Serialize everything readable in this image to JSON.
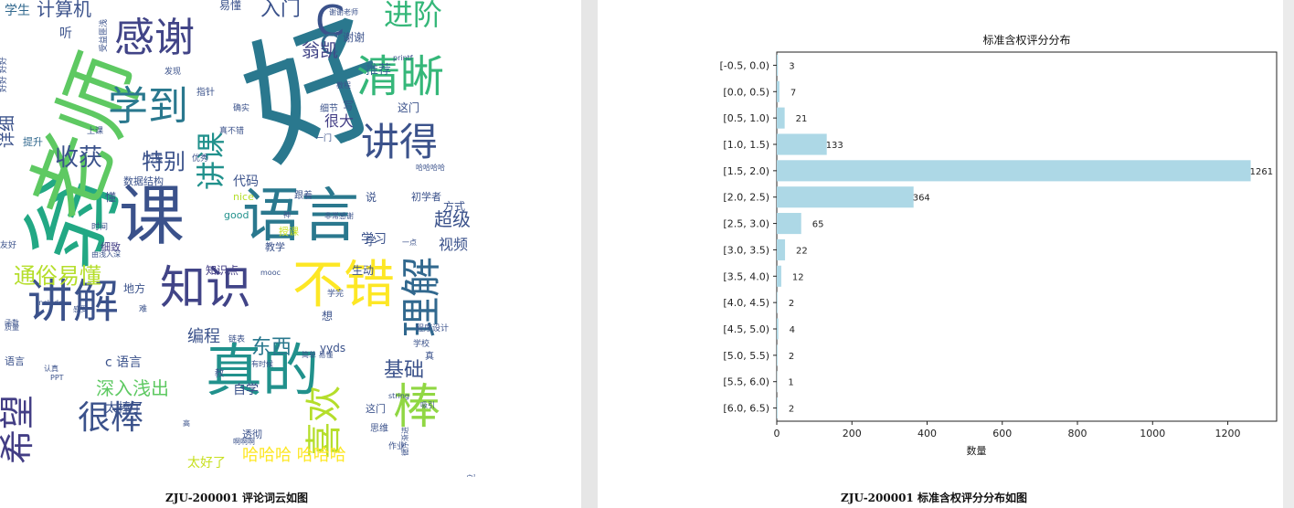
{
  "left_panel": {
    "caption": "ZJU-200001 评论词云如图",
    "words": [
      {
        "text": "好",
        "color": "#2a788e",
        "size": 150,
        "rotate": -20
      },
      {
        "text": "翁",
        "color": "#22a884",
        "size": 100,
        "rotate": -70
      },
      {
        "text": "老师",
        "color": "#5ec962",
        "size": 92,
        "rotate": -70
      },
      {
        "text": "课",
        "color": "#3b528b",
        "size": 72,
        "rotate": 0
      },
      {
        "text": "语言",
        "color": "#2a788e",
        "size": 64,
        "rotate": 0
      },
      {
        "text": "真的",
        "color": "#21918c",
        "size": 62,
        "rotate": 0
      },
      {
        "text": "不错",
        "color": "#fde725",
        "size": 56,
        "rotate": 0
      },
      {
        "text": "讲解",
        "color": "#3b528b",
        "size": 50,
        "rotate": 0
      },
      {
        "text": "知识",
        "color": "#414487",
        "size": 50,
        "rotate": 0
      },
      {
        "text": "清晰",
        "color": "#35b779",
        "size": 48,
        "rotate": 0
      },
      {
        "text": "感谢",
        "color": "#414487",
        "size": 44,
        "rotate": 0
      },
      {
        "text": "学到",
        "color": "#2a788e",
        "size": 44,
        "rotate": 0
      },
      {
        "text": "讲得",
        "color": "#3b528b",
        "size": 42,
        "rotate": 0
      },
      {
        "text": "理解",
        "color": "#31688e",
        "size": 44,
        "rotate": -90
      },
      {
        "text": "棒",
        "color": "#90d743",
        "size": 52,
        "rotate": 0
      },
      {
        "text": "喜欢",
        "color": "#b5de2b",
        "size": 40,
        "rotate": -90
      },
      {
        "text": "希望",
        "color": "#433e85",
        "size": 38,
        "rotate": -90
      },
      {
        "text": "很棒",
        "color": "#3b528b",
        "size": 36,
        "rotate": 0
      },
      {
        "text": "进阶",
        "color": "#35b779",
        "size": 32,
        "rotate": 0
      },
      {
        "text": "讲课",
        "color": "#21918c",
        "size": 32,
        "rotate": -90
      },
      {
        "text": "C",
        "color": "#3b528b",
        "size": 46,
        "rotate": 0
      },
      {
        "text": "C",
        "color": "#31688e",
        "size": 30,
        "rotate": 0
      },
      {
        "text": "收获",
        "color": "#3b528b",
        "size": 26,
        "rotate": 0
      },
      {
        "text": "特别",
        "color": "#3b528b",
        "size": 24,
        "rotate": 0
      },
      {
        "text": "通俗易懂",
        "color": "#b5de2b",
        "size": 24,
        "rotate": 0
      },
      {
        "text": "深入浅出",
        "color": "#5ec962",
        "size": 20,
        "rotate": 0
      },
      {
        "text": "东西",
        "color": "#2a788e",
        "size": 22,
        "rotate": 0
      },
      {
        "text": "基础",
        "color": "#3b528b",
        "size": 22,
        "rotate": 0
      },
      {
        "text": "入门",
        "color": "#3b528b",
        "size": 22,
        "rotate": 0
      },
      {
        "text": "计算机",
        "color": "#3b528b",
        "size": 20,
        "rotate": 0
      },
      {
        "text": "编程",
        "color": "#3b528b",
        "size": 18,
        "rotate": 0
      },
      {
        "text": "超级",
        "color": "#3b528b",
        "size": 20,
        "rotate": 0
      },
      {
        "text": "翁凯",
        "color": "#414487",
        "size": 20,
        "rotate": 0
      },
      {
        "text": "哈哈哈 哈哈哈",
        "color": "#fde725",
        "size": 18,
        "rotate": 0
      },
      {
        "text": "太好了",
        "color": "#c8e020",
        "size": 14,
        "rotate": 0
      },
      {
        "text": "详细",
        "color": "#3b528b",
        "size": 18,
        "rotate": -90
      },
      {
        "text": "推荐",
        "color": "#31688e",
        "size": 14,
        "rotate": 0
      },
      {
        "text": "很大",
        "color": "#433e85",
        "size": 16,
        "rotate": 0
      },
      {
        "text": "视频",
        "color": "#3b528b",
        "size": 16,
        "rotate": 0
      },
      {
        "text": "学生",
        "color": "#31688e",
        "size": 14,
        "rotate": 0
      },
      {
        "text": "代码",
        "color": "#3b528b",
        "size": 14,
        "rotate": 0
      },
      {
        "text": "自学",
        "color": "#3b528b",
        "size": 14,
        "rotate": 0
      },
      {
        "text": "生动",
        "color": "#3b528b",
        "size": 12,
        "rotate": 0
      },
      {
        "text": "知识点",
        "color": "#433e85",
        "size": 12,
        "rotate": 0
      },
      {
        "text": "方式",
        "color": "#3b528b",
        "size": 12,
        "rotate": 0
      },
      {
        "text": "这门",
        "color": "#3b528b",
        "size": 12,
        "rotate": 0
      },
      {
        "text": "数据结构",
        "color": "#3b528b",
        "size": 11,
        "rotate": 0
      },
      {
        "text": "初学者",
        "color": "#3b528b",
        "size": 11,
        "rotate": 0
      },
      {
        "text": "太棒了",
        "color": "#3b528b",
        "size": 14,
        "rotate": 0
      },
      {
        "text": "c 语言",
        "color": "#3b528b",
        "size": 14,
        "rotate": 0
      },
      {
        "text": "yyds",
        "color": "#3b528b",
        "size": 12,
        "rotate": 0
      },
      {
        "text": "good",
        "color": "#21918c",
        "size": 11,
        "rotate": 0
      },
      {
        "text": "nice",
        "color": "#b5de2b",
        "size": 11,
        "rotate": 0
      },
      {
        "text": "谢谢",
        "color": "#3b528b",
        "size": 12,
        "rotate": 0
      },
      {
        "text": "细致",
        "color": "#433e85",
        "size": 11,
        "rotate": 0
      },
      {
        "text": "地方",
        "color": "#3b528b",
        "size": 12,
        "rotate": 0
      },
      {
        "text": "教学",
        "color": "#3b528b",
        "size": 11,
        "rotate": 0
      },
      {
        "text": "授课",
        "color": "#c8e020",
        "size": 11,
        "rotate": 0
      },
      {
        "text": "学习",
        "color": "#3b528b",
        "size": 14,
        "rotate": 0
      },
      {
        "text": "提升",
        "color": "#31688e",
        "size": 11,
        "rotate": 0
      },
      {
        "text": "易懂",
        "color": "#3b528b",
        "size": 12,
        "rotate": 0
      },
      {
        "text": "透彻",
        "color": "#3b528b",
        "size": 11,
        "rotate": 0
      },
      {
        "text": "思维",
        "color": "#3b528b",
        "size": 10,
        "rotate": 0
      },
      {
        "text": "跟着",
        "color": "#3b528b",
        "size": 10,
        "rotate": 0
      },
      {
        "text": "作业",
        "color": "#3b528b",
        "size": 9,
        "rotate": 0
      },
      {
        "text": "时间",
        "color": "#3b528b",
        "size": 9,
        "rotate": 0
      },
      {
        "text": "写",
        "color": "#3b528b",
        "size": 12,
        "rotate": 0
      },
      {
        "text": "想",
        "color": "#3b528b",
        "size": 12,
        "rotate": 0
      },
      {
        "text": "说",
        "color": "#3b528b",
        "size": 12,
        "rotate": 0
      },
      {
        "text": "懂",
        "color": "#3b528b",
        "size": 12,
        "rotate": 0
      },
      {
        "text": "细节",
        "color": "#3b528b",
        "size": 10,
        "rotate": 0
      },
      {
        "text": "程序设计",
        "color": "#3b528b",
        "size": 9,
        "rotate": 0
      },
      {
        "text": "一门",
        "color": "#3b528b",
        "size": 9,
        "rotate": 0
      },
      {
        "text": "mooc",
        "color": "#3b528b",
        "size": 8,
        "rotate": 0
      },
      {
        "text": "printf",
        "color": "#3b528b",
        "size": 8,
        "rotate": 0
      },
      {
        "text": "string",
        "color": "#3b528b",
        "size": 8,
        "rotate": 0
      },
      {
        "text": "include",
        "color": "#3b528b",
        "size": 8,
        "rotate": 0
      },
      {
        "text": "PPT",
        "color": "#3b528b",
        "size": 8,
        "rotate": 0
      },
      {
        "text": "简单 易懂",
        "color": "#3b528b",
        "size": 8,
        "rotate": 0
      },
      {
        "text": "非常感谢",
        "color": "#3b528b",
        "size": 8,
        "rotate": 0
      },
      {
        "text": "由浅入深",
        "color": "#3b528b",
        "size": 8,
        "rotate": 0
      },
      {
        "text": "有时候",
        "color": "#3b528b",
        "size": 8,
        "rotate": 0
      },
      {
        "text": "优秀",
        "color": "#3b528b",
        "size": 9,
        "rotate": 0
      },
      {
        "text": "厉害",
        "color": "#3b528b",
        "size": 9,
        "rotate": 0
      },
      {
        "text": "真不错",
        "color": "#3b528b",
        "size": 9,
        "rotate": 0
      },
      {
        "text": "听",
        "color": "#3b528b",
        "size": 14,
        "rotate": 0
      },
      {
        "text": "学校",
        "color": "#3b528b",
        "size": 9,
        "rotate": 0
      },
      {
        "text": "确实",
        "color": "#3b528b",
        "size": 9,
        "rotate": 0
      },
      {
        "text": "指针",
        "color": "#3b528b",
        "size": 10,
        "rotate": 0
      },
      {
        "text": "教程",
        "color": "#3b528b",
        "size": 8,
        "rotate": 0
      },
      {
        "text": "感受",
        "color": "#3b528b",
        "size": 8,
        "rotate": 0
      },
      {
        "text": "语言",
        "color": "#3b528b",
        "size": 11,
        "rotate": 0
      },
      {
        "text": "发现",
        "color": "#3b528b",
        "size": 9,
        "rotate": 0
      },
      {
        "text": "友好",
        "color": "#3b528b",
        "size": 9,
        "rotate": 0
      },
      {
        "text": "吸引",
        "color": "#3b528b",
        "size": 8,
        "rotate": 0
      },
      {
        "text": "函数",
        "color": "#3b528b",
        "size": 8,
        "rotate": 0
      },
      {
        "text": "好好 好好",
        "color": "#3b528b",
        "size": 9,
        "rotate": -90
      },
      {
        "text": "这门",
        "color": "#3b528b",
        "size": 11,
        "rotate": 0
      },
      {
        "text": "学完",
        "color": "#3b528b",
        "size": 9,
        "rotate": 0
      },
      {
        "text": "哈哈哈哈",
        "color": "#3b528b",
        "size": 8,
        "rotate": 0
      },
      {
        "text": "谢谢老师",
        "color": "#3b528b",
        "size": 8,
        "rotate": 0
      },
      {
        "text": "上课",
        "color": "#3b528b",
        "size": 9,
        "rotate": 0
      },
      {
        "text": "真",
        "color": "#3b528b",
        "size": 10,
        "rotate": 0
      },
      {
        "text": "一点",
        "color": "#3b528b",
        "size": 8,
        "rotate": 0
      },
      {
        "text": "难",
        "color": "#3b528b",
        "size": 9,
        "rotate": 0
      },
      {
        "text": "神",
        "color": "#3b528b",
        "size": 8,
        "rotate": 0
      },
      {
        "text": "高",
        "color": "#3b528b",
        "size": 8,
        "rotate": 0
      },
      {
        "text": "啊啊啊",
        "color": "#3b528b",
        "size": 8,
        "rotate": 0
      },
      {
        "text": "学",
        "color": "#3b528b",
        "size": 12,
        "rotate": 0
      },
      {
        "text": "教",
        "color": "#3b528b",
        "size": 10,
        "rotate": 0
      },
      {
        "text": "循序渐进",
        "color": "#3b528b",
        "size": 8,
        "rotate": -90
      },
      {
        "text": "受益匪浅",
        "color": "#3b528b",
        "size": 9,
        "rotate": -90
      },
      {
        "text": "链表",
        "color": "#3b528b",
        "size": 9,
        "rotate": 0
      },
      {
        "text": "认真",
        "color": "#3b528b",
        "size": 8,
        "rotate": 0
      },
      {
        "text": "启蒙",
        "color": "#3b528b",
        "size": 8,
        "rotate": 0
      },
      {
        "text": "质量",
        "color": "#3b528b",
        "size": 8,
        "rotate": 0
      }
    ]
  },
  "right_panel": {
    "caption": "ZJU-200001 标准含权评分分布如图"
  },
  "chart_data": {
    "type": "bar",
    "orientation": "horizontal",
    "title": "标准含权评分分布",
    "xlabel": "数量",
    "ylabel": "",
    "categories": [
      "[-0.5, 0.0)",
      "[0.0, 0.5)",
      "[0.5, 1.0)",
      "[1.0, 1.5)",
      "[1.5, 2.0)",
      "[2.0, 2.5)",
      "[2.5, 3.0)",
      "[3.0, 3.5)",
      "[3.5, 4.0)",
      "[4.0, 4.5)",
      "[4.5, 5.0)",
      "[5.0, 5.5)",
      "[5.5, 6.0)",
      "[6.0, 6.5)"
    ],
    "values": [
      3,
      7,
      21,
      133,
      1261,
      364,
      65,
      22,
      12,
      2,
      4,
      2,
      1,
      2
    ],
    "xlim": [
      0,
      1330
    ],
    "xticks": [
      0,
      200,
      400,
      600,
      800,
      1000,
      1200
    ],
    "bar_color": "#add8e6",
    "grid": false
  }
}
